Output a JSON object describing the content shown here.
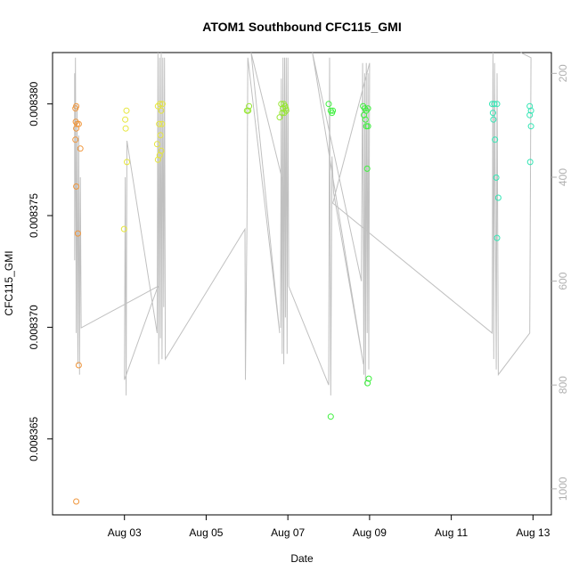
{
  "chart_data": {
    "type": "scatter",
    "title": "ATOM1 Southbound CFC115_GMI",
    "xlabel": "Date",
    "ylabel": "CFC115_GMI",
    "x_tick_labels": [
      "Aug 03",
      "Aug 05",
      "Aug 07",
      "Aug 09",
      "Aug 11",
      "Aug 13"
    ],
    "x_tick_days": [
      3,
      5,
      7,
      9,
      11,
      13
    ],
    "xlim_days": [
      1.24,
      13.45
    ],
    "y_ticks": [
      0.008365,
      0.00837,
      0.008375,
      0.00838
    ],
    "y_tick_labels": [
      "0.008365",
      "0.008370",
      "0.008375",
      "0.008380"
    ],
    "ylim": [
      0.0083616,
      0.0083823
    ],
    "y2_label_color": "#b0b0b0",
    "y2_ticks": [
      200,
      400,
      600,
      800,
      1000
    ],
    "y2_tick_labels": [
      "200",
      "400",
      "600",
      "800",
      "1000"
    ],
    "y2_lim": [
      1050,
      160
    ],
    "grid": false,
    "legend": "none",
    "pressure_line_color": "#c0c0c0",
    "groups": [
      {
        "color": "#f0963c",
        "points": [
          [
            1.8,
            0.0083798
          ],
          [
            1.82,
            0.0083799
          ],
          [
            1.81,
            0.0083792
          ],
          [
            1.84,
            0.0083791
          ],
          [
            1.82,
            0.0083789
          ],
          [
            1.88,
            0.0083791
          ],
          [
            1.8,
            0.0083784
          ],
          [
            1.92,
            0.008378
          ],
          [
            1.82,
            0.0083763
          ],
          [
            1.86,
            0.0083742
          ],
          [
            1.88,
            0.0083683
          ],
          [
            1.82,
            0.0083622
          ]
        ]
      },
      {
        "color": "#e6e63c",
        "points": [
          [
            3.05,
            0.0083797
          ],
          [
            3.02,
            0.0083793
          ],
          [
            3.03,
            0.0083789
          ],
          [
            3.06,
            0.0083774
          ],
          [
            2.99,
            0.0083744
          ],
          [
            3.82,
            0.0083799
          ],
          [
            3.87,
            0.00838
          ],
          [
            3.9,
            0.0083797
          ],
          [
            3.93,
            0.00838
          ],
          [
            3.85,
            0.0083791
          ],
          [
            3.92,
            0.0083791
          ],
          [
            3.88,
            0.0083786
          ],
          [
            3.8,
            0.0083782
          ],
          [
            3.86,
            0.0083777
          ],
          [
            3.82,
            0.0083775
          ],
          [
            3.9,
            0.0083779
          ]
        ]
      },
      {
        "color": "#96e632",
        "points": [
          [
            6.0,
            0.0083797
          ],
          [
            6.03,
            0.0083797
          ],
          [
            6.05,
            0.0083799
          ],
          [
            6.84,
            0.00838
          ],
          [
            6.88,
            0.0083798
          ],
          [
            6.9,
            0.00838
          ],
          [
            6.93,
            0.0083799
          ],
          [
            6.95,
            0.0083798
          ],
          [
            6.86,
            0.0083796
          ],
          [
            6.91,
            0.0083796
          ],
          [
            6.8,
            0.0083794
          ],
          [
            6.96,
            0.0083797
          ]
        ]
      },
      {
        "color": "#3cf03c",
        "points": [
          [
            8.0,
            0.00838
          ],
          [
            8.05,
            0.0083797
          ],
          [
            8.08,
            0.0083796
          ],
          [
            8.1,
            0.0083797
          ],
          [
            8.84,
            0.0083799
          ],
          [
            8.88,
            0.0083798
          ],
          [
            8.92,
            0.0083797
          ],
          [
            8.96,
            0.0083798
          ],
          [
            8.86,
            0.0083795
          ],
          [
            8.9,
            0.0083793
          ],
          [
            8.92,
            0.008379
          ],
          [
            8.96,
            0.008379
          ],
          [
            8.94,
            0.0083771
          ],
          [
            8.98,
            0.0083677
          ],
          [
            8.95,
            0.0083675
          ],
          [
            8.05,
            0.008366
          ]
        ]
      },
      {
        "color": "#32e6b4",
        "points": [
          [
            12.0,
            0.00838
          ],
          [
            12.05,
            0.00838
          ],
          [
            12.12,
            0.00838
          ],
          [
            12.02,
            0.0083796
          ],
          [
            12.03,
            0.0083793
          ],
          [
            12.07,
            0.0083784
          ],
          [
            12.1,
            0.0083767
          ],
          [
            12.15,
            0.0083758
          ],
          [
            12.12,
            0.008374
          ],
          [
            12.92,
            0.0083799
          ],
          [
            12.95,
            0.0083797
          ],
          [
            12.92,
            0.0083795
          ],
          [
            12.95,
            0.008379
          ],
          [
            12.93,
            0.0083774
          ]
        ]
      }
    ],
    "pressure_path": [
      [
        1.78,
        200
      ],
      [
        1.78,
        560
      ],
      [
        1.8,
        170
      ],
      [
        1.82,
        700
      ],
      [
        1.84,
        260
      ],
      [
        1.86,
        760
      ],
      [
        1.88,
        320
      ],
      [
        1.9,
        780
      ],
      [
        1.92,
        400
      ],
      [
        1.94,
        690
      ],
      [
        3.82,
        610
      ],
      [
        3.0,
        790
      ],
      [
        3.02,
        400
      ],
      [
        3.04,
        820
      ],
      [
        3.06,
        330
      ],
      [
        3.8,
        700
      ],
      [
        3.82,
        160
      ],
      [
        3.84,
        760
      ],
      [
        3.86,
        170
      ],
      [
        3.88,
        710
      ],
      [
        3.9,
        160
      ],
      [
        3.92,
        750
      ],
      [
        3.94,
        170
      ],
      [
        3.96,
        650
      ],
      [
        3.98,
        170
      ],
      [
        4.0,
        750
      ],
      [
        5.95,
        500
      ],
      [
        5.96,
        790
      ],
      [
        6.0,
        480
      ],
      [
        6.02,
        170
      ],
      [
        6.05,
        190
      ],
      [
        6.8,
        700
      ],
      [
        6.1,
        160
      ],
      [
        6.85,
        400
      ],
      [
        6.82,
        690
      ],
      [
        6.84,
        210
      ],
      [
        6.86,
        740
      ],
      [
        6.88,
        170
      ],
      [
        6.9,
        760
      ],
      [
        6.92,
        170
      ],
      [
        6.94,
        670
      ],
      [
        6.96,
        170
      ],
      [
        6.98,
        740
      ],
      [
        7.0,
        170
      ],
      [
        7.02,
        610
      ],
      [
        8.0,
        800
      ],
      [
        8.02,
        170
      ],
      [
        8.05,
        820
      ],
      [
        8.08,
        360
      ],
      [
        8.12,
        430
      ],
      [
        8.85,
        760
      ],
      [
        7.6,
        160
      ],
      [
        8.8,
        600
      ],
      [
        8.83,
        180
      ],
      [
        8.86,
        780
      ],
      [
        8.88,
        200
      ],
      [
        8.9,
        800
      ],
      [
        8.92,
        180
      ],
      [
        8.94,
        700
      ],
      [
        8.96,
        200
      ],
      [
        8.98,
        770
      ],
      [
        9.0,
        180
      ],
      [
        8.1,
        450
      ],
      [
        12.0,
        700
      ],
      [
        12.02,
        160
      ],
      [
        12.04,
        750
      ],
      [
        12.06,
        180
      ],
      [
        12.1,
        770
      ],
      [
        12.12,
        200
      ],
      [
        12.15,
        780
      ],
      [
        12.92,
        700
      ],
      [
        12.95,
        170
      ],
      [
        12.7,
        160
      ]
    ]
  }
}
